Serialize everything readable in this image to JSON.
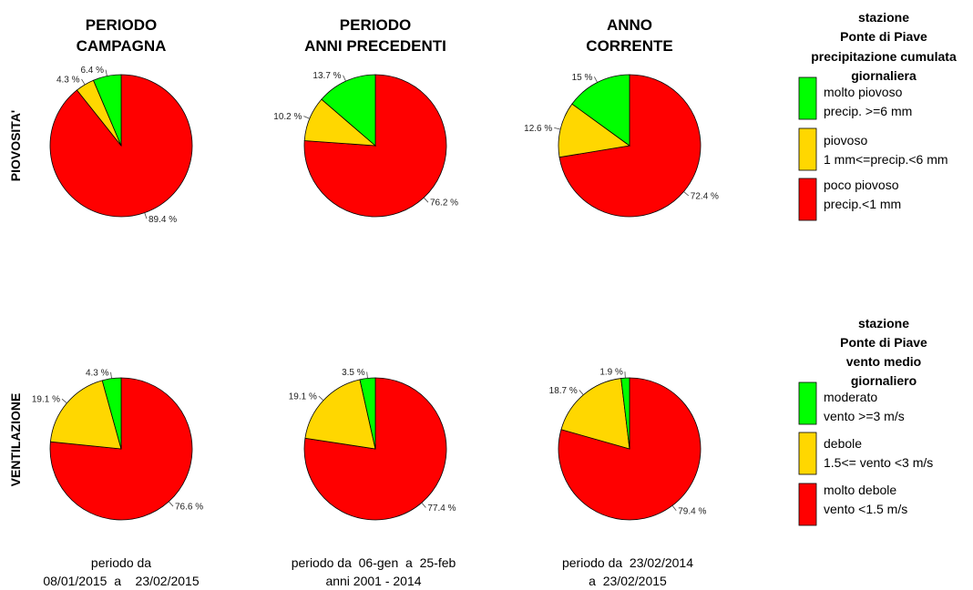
{
  "colors": {
    "high": "#00ff00",
    "mid": "#ffd700",
    "low": "#ff0000",
    "outline": "#000000"
  },
  "column_titles": [
    [
      "PERIODO",
      "CAMPAGNA"
    ],
    [
      "PERIODO",
      "ANNI PRECEDENTI"
    ],
    [
      "ANNO",
      "CORRENTE"
    ]
  ],
  "row_labels": [
    "PIOVOSITA'",
    "VENTILAZIONE"
  ],
  "legends": [
    {
      "title": [
        "stazione",
        "Ponte di Piave",
        "precipitazione cumulata",
        "giornaliera"
      ],
      "items": [
        {
          "color": "#00ff00",
          "lines": [
            "molto piovoso",
            "precip. >=6 mm"
          ]
        },
        {
          "color": "#ffd700",
          "lines": [
            "piovoso",
            "1 mm<=precip.<6 mm"
          ]
        },
        {
          "color": "#ff0000",
          "lines": [
            "poco piovoso",
            "precip.<1 mm"
          ]
        }
      ]
    },
    {
      "title": [
        "stazione",
        "Ponte di Piave",
        "vento medio",
        "giornaliero"
      ],
      "items": [
        {
          "color": "#00ff00",
          "lines": [
            "moderato",
            "vento >=3 m/s"
          ]
        },
        {
          "color": "#ffd700",
          "lines": [
            "debole",
            "1.5<= vento <3 m/s"
          ]
        },
        {
          "color": "#ff0000",
          "lines": [
            "molto debole",
            "vento <1.5 m/s"
          ]
        }
      ]
    }
  ],
  "footers": [
    [
      "periodo da",
      "08/01/2015  a    23/02/2015"
    ],
    [
      "periodo da  06-gen  a  25-feb",
      "anni 2001 - 2014"
    ],
    [
      "periodo da  23/02/2014",
      "a  23/02/2015"
    ]
  ],
  "chart_data": [
    {
      "type": "pie",
      "row": "PIOVOSITA'",
      "column": "PERIODO CAMPAGNA",
      "slices": [
        {
          "label": "89.4 %",
          "value": 89.4,
          "color": "#ff0000"
        },
        {
          "label": "4.3 %",
          "value": 4.3,
          "color": "#ffd700"
        },
        {
          "label": "6.4 %",
          "value": 6.4,
          "color": "#00ff00"
        }
      ]
    },
    {
      "type": "pie",
      "row": "PIOVOSITA'",
      "column": "PERIODO ANNI PRECEDENTI",
      "slices": [
        {
          "label": "76.2 %",
          "value": 76.2,
          "color": "#ff0000"
        },
        {
          "label": "10.2 %",
          "value": 10.2,
          "color": "#ffd700"
        },
        {
          "label": "13.7 %",
          "value": 13.7,
          "color": "#00ff00"
        }
      ]
    },
    {
      "type": "pie",
      "row": "PIOVOSITA'",
      "column": "ANNO CORRENTE",
      "slices": [
        {
          "label": "72.4 %",
          "value": 72.4,
          "color": "#ff0000"
        },
        {
          "label": "12.6 %",
          "value": 12.6,
          "color": "#ffd700"
        },
        {
          "label": "15 %",
          "value": 15,
          "color": "#00ff00"
        }
      ]
    },
    {
      "type": "pie",
      "row": "VENTILAZIONE",
      "column": "PERIODO CAMPAGNA",
      "slices": [
        {
          "label": "76.6 %",
          "value": 76.6,
          "color": "#ff0000"
        },
        {
          "label": "19.1 %",
          "value": 19.1,
          "color": "#ffd700"
        },
        {
          "label": "4.3 %",
          "value": 4.3,
          "color": "#00ff00"
        }
      ]
    },
    {
      "type": "pie",
      "row": "VENTILAZIONE",
      "column": "PERIODO ANNI PRECEDENTI",
      "slices": [
        {
          "label": "77.4 %",
          "value": 77.4,
          "color": "#ff0000"
        },
        {
          "label": "19.1 %",
          "value": 19.1,
          "color": "#ffd700"
        },
        {
          "label": "3.5 %",
          "value": 3.5,
          "color": "#00ff00"
        }
      ]
    },
    {
      "type": "pie",
      "row": "VENTILAZIONE",
      "column": "ANNO CORRENTE",
      "slices": [
        {
          "label": "79.4 %",
          "value": 79.4,
          "color": "#ff0000"
        },
        {
          "label": "18.7 %",
          "value": 18.7,
          "color": "#ffd700"
        },
        {
          "label": "1.9 %",
          "value": 1.9,
          "color": "#00ff00"
        }
      ]
    }
  ]
}
